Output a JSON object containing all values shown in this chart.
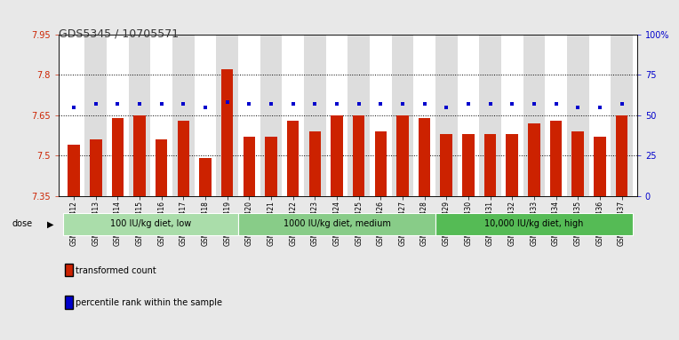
{
  "title": "GDS5345 / 10705571",
  "samples": [
    "GSM1502412",
    "GSM1502413",
    "GSM1502414",
    "GSM1502415",
    "GSM1502416",
    "GSM1502417",
    "GSM1502418",
    "GSM1502419",
    "GSM1502420",
    "GSM1502421",
    "GSM1502422",
    "GSM1502423",
    "GSM1502424",
    "GSM1502425",
    "GSM1502426",
    "GSM1502427",
    "GSM1502428",
    "GSM1502429",
    "GSM1502430",
    "GSM1502431",
    "GSM1502432",
    "GSM1502433",
    "GSM1502434",
    "GSM1502435",
    "GSM1502436",
    "GSM1502437"
  ],
  "bar_values": [
    7.54,
    7.56,
    7.64,
    7.65,
    7.56,
    7.63,
    7.49,
    7.82,
    7.57,
    7.57,
    7.63,
    7.59,
    7.65,
    7.65,
    7.59,
    7.65,
    7.64,
    7.58,
    7.58,
    7.58,
    7.58,
    7.62,
    7.63,
    7.59,
    7.57,
    7.65
  ],
  "percentile_values": [
    55,
    57,
    57,
    57,
    57,
    57,
    55,
    58,
    57,
    57,
    57,
    57,
    57,
    57,
    57,
    57,
    57,
    55,
    57,
    57,
    57,
    57,
    57,
    55,
    55,
    57
  ],
  "bar_color": "#cc2200",
  "dot_color": "#0000cc",
  "ylim_left": [
    7.35,
    7.95
  ],
  "ylim_right": [
    0,
    100
  ],
  "yticks_left": [
    7.35,
    7.5,
    7.65,
    7.8,
    7.95
  ],
  "yticks_right": [
    0,
    25,
    50,
    75,
    100
  ],
  "ytick_labels_left": [
    "7.35",
    "7.5",
    "7.65",
    "7.8",
    "7.95"
  ],
  "ytick_labels_right": [
    "0",
    "25",
    "50",
    "75",
    "100%"
  ],
  "hlines": [
    7.5,
    7.65,
    7.8
  ],
  "groups": [
    {
      "label": "100 IU/kg diet, low",
      "start": 0,
      "end": 7
    },
    {
      "label": "1000 IU/kg diet, medium",
      "start": 8,
      "end": 16
    },
    {
      "label": "10,000 IU/kg diet, high",
      "start": 17,
      "end": 25
    }
  ],
  "dose_label": "dose",
  "legend_bar_label": "transformed count",
  "legend_dot_label": "percentile rank within the sample",
  "bg_color": "#e8e8e8",
  "plot_bg_color": "#ffffff",
  "title_color": "#333333",
  "left_tick_color": "#cc2200",
  "right_tick_color": "#0000cc",
  "group_colors": [
    "#aaddaa",
    "#88cc88",
    "#55bb55"
  ]
}
